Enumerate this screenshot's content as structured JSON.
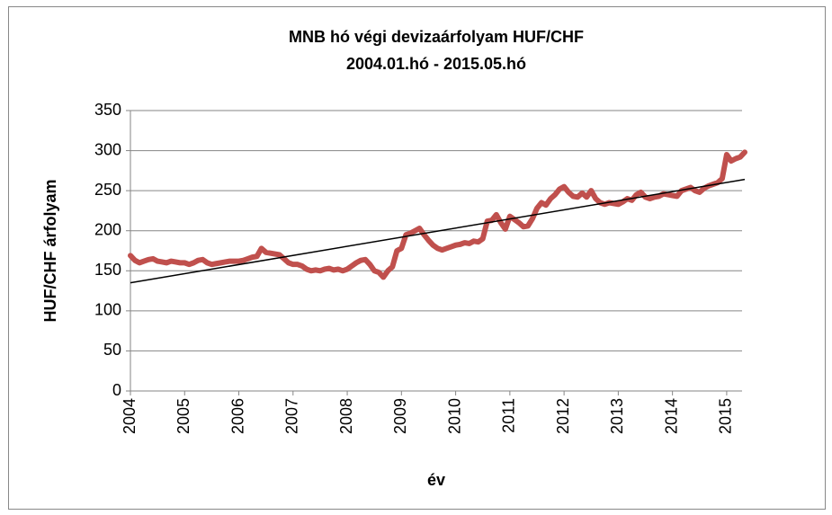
{
  "chart_data": {
    "type": "line",
    "title": "MNB hó végi devizaárfolyam HUF/CHF",
    "subtitle": "2004.01.hó - 2015.05.hó",
    "xlabel": "év",
    "ylabel": "HUF/CHF árfolyam",
    "categories": [
      "2004",
      null,
      null,
      null,
      null,
      null,
      null,
      null,
      null,
      null,
      null,
      null,
      "2005",
      null,
      null,
      null,
      null,
      null,
      null,
      null,
      null,
      null,
      null,
      null,
      "2006",
      null,
      null,
      null,
      null,
      null,
      null,
      null,
      null,
      null,
      null,
      null,
      "2007",
      null,
      null,
      null,
      null,
      null,
      null,
      null,
      null,
      null,
      null,
      null,
      "2008",
      null,
      null,
      null,
      null,
      null,
      null,
      null,
      null,
      null,
      null,
      null,
      "2009",
      null,
      null,
      null,
      null,
      null,
      null,
      null,
      null,
      null,
      null,
      null,
      "2010",
      null,
      null,
      null,
      null,
      null,
      null,
      null,
      null,
      null,
      null,
      null,
      "2011",
      null,
      null,
      null,
      null,
      null,
      null,
      null,
      null,
      null,
      null,
      null,
      "2012",
      null,
      null,
      null,
      null,
      null,
      null,
      null,
      null,
      null,
      null,
      null,
      "2013",
      null,
      null,
      null,
      null,
      null,
      null,
      null,
      null,
      null,
      null,
      null,
      "2014",
      null,
      null,
      null,
      null,
      null,
      null,
      null,
      null,
      null,
      null,
      null,
      "2015",
      null,
      null,
      null,
      null
    ],
    "values": [
      169,
      163,
      160,
      162,
      164,
      165,
      162,
      161,
      160,
      162,
      161,
      160,
      160,
      158,
      160,
      163,
      164,
      160,
      158,
      159,
      160,
      161,
      162,
      162,
      162,
      163,
      165,
      167,
      168,
      178,
      173,
      172,
      171,
      170,
      165,
      160,
      158,
      158,
      156,
      152,
      150,
      151,
      150,
      152,
      153,
      151,
      152,
      150,
      152,
      156,
      160,
      163,
      164,
      158,
      150,
      148,
      142,
      150,
      155,
      175,
      178,
      195,
      197,
      200,
      203,
      195,
      188,
      182,
      178,
      176,
      178,
      180,
      182,
      183,
      185,
      184,
      187,
      186,
      190,
      212,
      213,
      220,
      210,
      202,
      218,
      214,
      210,
      205,
      206,
      215,
      228,
      235,
      232,
      240,
      245,
      252,
      255,
      248,
      243,
      242,
      247,
      242,
      250,
      240,
      235,
      233,
      235,
      234,
      233,
      236,
      240,
      238,
      245,
      248,
      242,
      240,
      242,
      243,
      246,
      245,
      244,
      243,
      250,
      252,
      254,
      250,
      248,
      253,
      256,
      258,
      260,
      265,
      295,
      287,
      290,
      292,
      298
    ],
    "color": "#c0504d",
    "trendline": {
      "values": [
        135,
        264
      ],
      "color": "#000000"
    },
    "ylim": [
      0,
      350
    ],
    "yticks": [
      0,
      50,
      100,
      150,
      200,
      250,
      300,
      350
    ],
    "grid": true
  }
}
